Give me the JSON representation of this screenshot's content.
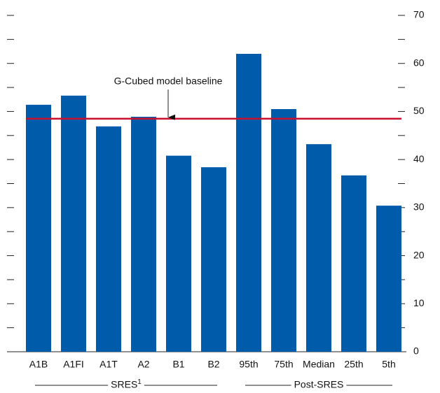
{
  "chart_data": {
    "type": "bar",
    "categories": [
      "A1B",
      "A1FI",
      "A1T",
      "A2",
      "B1",
      "B2",
      "95th",
      "75th",
      "Median",
      "25th",
      "5th"
    ],
    "values": [
      51.4,
      53.3,
      46.9,
      48.9,
      40.8,
      38.4,
      62.0,
      50.5,
      43.2,
      36.7,
      30.4
    ],
    "color": "#005bab",
    "ylim": [
      0,
      70
    ],
    "yticks": [
      0,
      10,
      20,
      30,
      40,
      50,
      60,
      70
    ],
    "minor_yticks": [
      5,
      15,
      25,
      35,
      45,
      55,
      65
    ],
    "baseline": {
      "label": "G-Cubed model baseline",
      "value": 48.5,
      "color": "#c8102e"
    },
    "groups": [
      {
        "label": "SRES",
        "footnote": "1",
        "count": 6
      },
      {
        "label": "Post-SRES",
        "count": 5
      }
    ]
  }
}
